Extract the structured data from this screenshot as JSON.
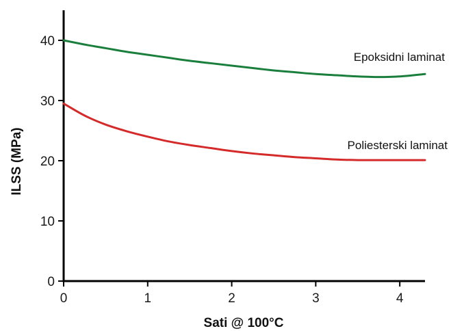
{
  "chart_data": {
    "type": "line",
    "title": "",
    "xlabel": "Sati @ 100°C",
    "ylabel": "ILSS (MPa)",
    "xlim": [
      0,
      4.3
    ],
    "ylim": [
      0,
      45
    ],
    "x_ticks": [
      0,
      1,
      2,
      3,
      4
    ],
    "y_ticks": [
      0,
      10,
      20,
      30,
      40
    ],
    "grid": false,
    "legend": "none (series labeled inline)",
    "axis_color": "#000000",
    "series": [
      {
        "name": "Epoksidni laminat",
        "color": "#1a7f3c",
        "x": [
          0,
          0.25,
          0.5,
          0.75,
          1,
          1.25,
          1.5,
          1.75,
          2,
          2.25,
          2.5,
          2.75,
          3,
          3.25,
          3.5,
          3.75,
          4,
          4.3
        ],
        "y": [
          40.0,
          39.3,
          38.7,
          38.1,
          37.6,
          37.1,
          36.6,
          36.2,
          35.8,
          35.4,
          35.0,
          34.7,
          34.4,
          34.2,
          34.0,
          33.9,
          34.0,
          34.4
        ]
      },
      {
        "name": "Poliesterski laminat",
        "color": "#d42a2a",
        "x": [
          0,
          0.25,
          0.5,
          0.75,
          1,
          1.25,
          1.5,
          1.75,
          2,
          2.25,
          2.5,
          2.75,
          3,
          3.25,
          3.5,
          3.75,
          4,
          4.3
        ],
        "y": [
          29.5,
          27.5,
          26.0,
          24.9,
          24.0,
          23.2,
          22.6,
          22.1,
          21.6,
          21.2,
          20.9,
          20.6,
          20.4,
          20.2,
          20.1,
          20.1,
          20.1,
          20.1
        ]
      }
    ]
  }
}
